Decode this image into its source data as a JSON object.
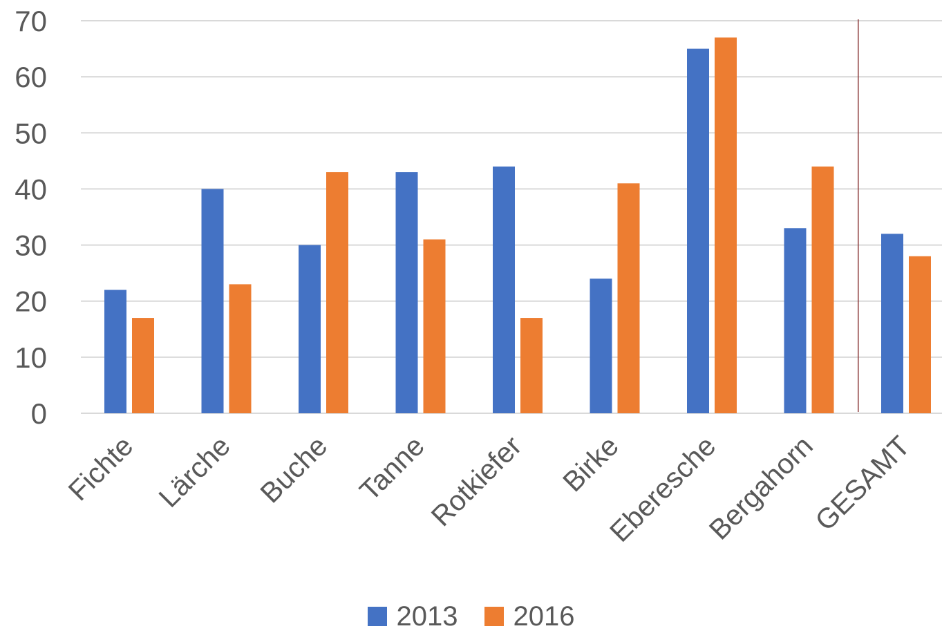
{
  "chart_data": {
    "type": "bar",
    "categories": [
      "Fichte",
      "Lärche",
      "Buche",
      "Tanne",
      "Rotkiefer",
      "Birke",
      "Eberesche",
      "Bergahorn",
      "GESAMT"
    ],
    "series": [
      {
        "name": "2013",
        "color": "#4472C4",
        "values": [
          22,
          40,
          30,
          43,
          44,
          24,
          65,
          33,
          32
        ]
      },
      {
        "name": "2016",
        "color": "#ED7D31",
        "values": [
          17,
          23,
          43,
          31,
          17,
          41,
          67,
          44,
          28
        ]
      }
    ],
    "ylim": [
      0,
      70
    ],
    "yticks": [
      0,
      10,
      20,
      30,
      40,
      50,
      60,
      70
    ],
    "grid": true,
    "legend_position": "bottom",
    "separator_before_category": "GESAMT",
    "separator_color": "#8B3A3A"
  }
}
